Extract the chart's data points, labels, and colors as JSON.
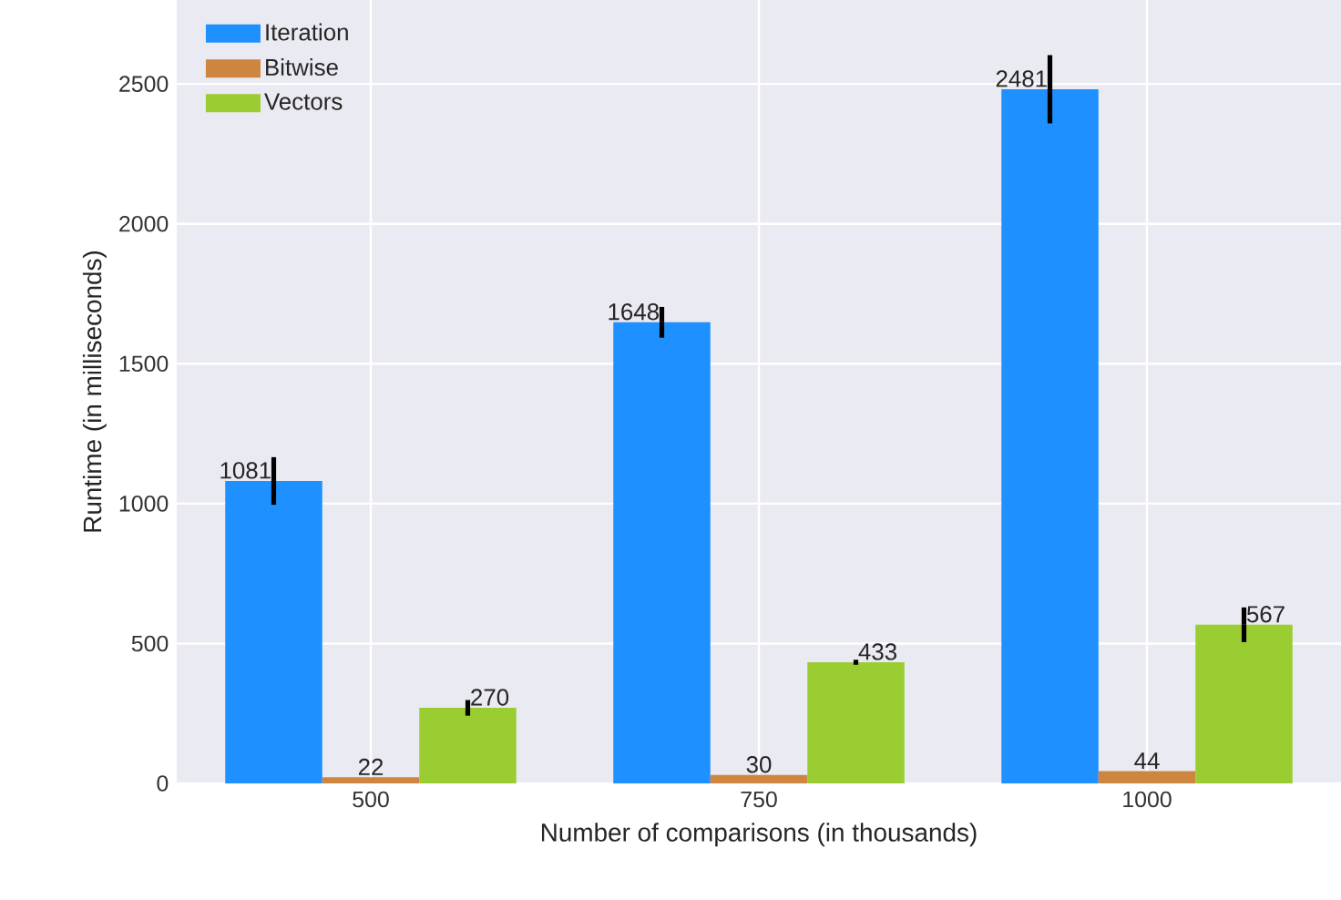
{
  "chart_data": {
    "type": "bar",
    "xlabel": "Number of comparisons (in thousands)",
    "ylabel": "Runtime (in milliseconds)",
    "categories": [
      "500",
      "750",
      "1000"
    ],
    "series": [
      {
        "name": "Iteration",
        "color": "#1e90ff",
        "values": [
          1081,
          1648,
          2481
        ],
        "errors": [
          85,
          55,
          122
        ]
      },
      {
        "name": "Bitwise",
        "color": "#cd853f",
        "values": [
          22,
          30,
          44
        ]
      },
      {
        "name": "Vectors",
        "color": "#9acd32",
        "values": [
          270,
          433,
          567
        ],
        "errors": [
          28,
          9,
          62
        ]
      }
    ],
    "ylim": [
      0,
      2800
    ],
    "yticks": [
      0,
      500,
      1000,
      1500,
      2000,
      2500
    ],
    "grid": true,
    "legend": "top left",
    "data_labels": true
  }
}
